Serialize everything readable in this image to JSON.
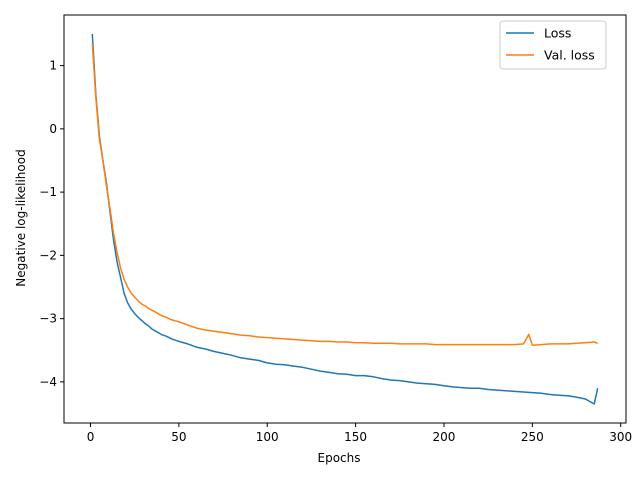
{
  "chart_data": {
    "type": "line",
    "xlabel": "Epochs",
    "ylabel": "Negative log-likelihood",
    "xlim": [
      -15,
      303
    ],
    "ylim": [
      -4.65,
      1.8
    ],
    "x_ticks": [
      0,
      50,
      100,
      150,
      200,
      250,
      300
    ],
    "y_ticks": [
      1,
      0,
      -1,
      -2,
      -3,
      -4
    ],
    "y_tick_labels": [
      "1",
      "0",
      "−1",
      "−2",
      "−3",
      "−4"
    ],
    "grid": false,
    "legend_position": "top-right",
    "series": [
      {
        "name": "Loss",
        "color": "#1f77b4",
        "x": [
          1,
          3,
          5,
          7,
          9,
          11,
          13,
          15,
          17,
          19,
          21,
          23,
          25,
          27,
          29,
          31,
          33,
          35,
          37,
          40,
          43,
          46,
          50,
          55,
          60,
          65,
          70,
          75,
          80,
          85,
          90,
          95,
          100,
          105,
          110,
          115,
          120,
          125,
          130,
          135,
          140,
          145,
          150,
          155,
          160,
          165,
          170,
          175,
          180,
          185,
          190,
          195,
          200,
          205,
          210,
          215,
          220,
          225,
          230,
          235,
          240,
          245,
          250,
          255,
          260,
          265,
          270,
          275,
          280,
          285,
          287
        ],
        "values": [
          1.5,
          0.55,
          -0.1,
          -0.5,
          -0.85,
          -1.3,
          -1.75,
          -2.1,
          -2.35,
          -2.6,
          -2.75,
          -2.85,
          -2.92,
          -2.98,
          -3.03,
          -3.08,
          -3.12,
          -3.17,
          -3.2,
          -3.25,
          -3.28,
          -3.32,
          -3.36,
          -3.4,
          -3.45,
          -3.48,
          -3.52,
          -3.55,
          -3.58,
          -3.62,
          -3.64,
          -3.66,
          -3.7,
          -3.72,
          -3.73,
          -3.75,
          -3.77,
          -3.8,
          -3.83,
          -3.85,
          -3.87,
          -3.88,
          -3.9,
          -3.9,
          -3.92,
          -3.95,
          -3.97,
          -3.98,
          -4.0,
          -4.02,
          -4.03,
          -4.04,
          -4.06,
          -4.08,
          -4.09,
          -4.1,
          -4.1,
          -4.12,
          -4.13,
          -4.14,
          -4.15,
          -4.16,
          -4.17,
          -4.18,
          -4.2,
          -4.21,
          -4.22,
          -4.24,
          -4.27,
          -4.35,
          -4.1
        ]
      },
      {
        "name": "Val. loss",
        "color": "#ff7f0e",
        "x": [
          1,
          3,
          5,
          7,
          9,
          11,
          13,
          15,
          17,
          19,
          21,
          23,
          25,
          27,
          29,
          31,
          33,
          35,
          37,
          40,
          43,
          46,
          50,
          55,
          60,
          65,
          70,
          75,
          80,
          85,
          90,
          95,
          100,
          105,
          110,
          115,
          120,
          125,
          130,
          135,
          140,
          145,
          150,
          155,
          160,
          165,
          170,
          175,
          180,
          185,
          190,
          195,
          200,
          205,
          210,
          215,
          220,
          225,
          230,
          235,
          240,
          245,
          248,
          250,
          255,
          260,
          265,
          270,
          275,
          280,
          285,
          287
        ],
        "values": [
          1.35,
          0.5,
          -0.15,
          -0.5,
          -0.9,
          -1.25,
          -1.65,
          -1.95,
          -2.2,
          -2.38,
          -2.5,
          -2.6,
          -2.66,
          -2.72,
          -2.77,
          -2.8,
          -2.84,
          -2.87,
          -2.9,
          -2.95,
          -2.98,
          -3.02,
          -3.05,
          -3.1,
          -3.15,
          -3.18,
          -3.2,
          -3.22,
          -3.24,
          -3.26,
          -3.27,
          -3.29,
          -3.3,
          -3.31,
          -3.32,
          -3.33,
          -3.34,
          -3.35,
          -3.36,
          -3.36,
          -3.37,
          -3.37,
          -3.38,
          -3.38,
          -3.39,
          -3.39,
          -3.39,
          -3.4,
          -3.4,
          -3.4,
          -3.4,
          -3.41,
          -3.41,
          -3.41,
          -3.41,
          -3.41,
          -3.41,
          -3.41,
          -3.41,
          -3.41,
          -3.41,
          -3.4,
          -3.25,
          -3.42,
          -3.41,
          -3.4,
          -3.4,
          -3.4,
          -3.39,
          -3.38,
          -3.37,
          -3.39
        ]
      }
    ]
  }
}
